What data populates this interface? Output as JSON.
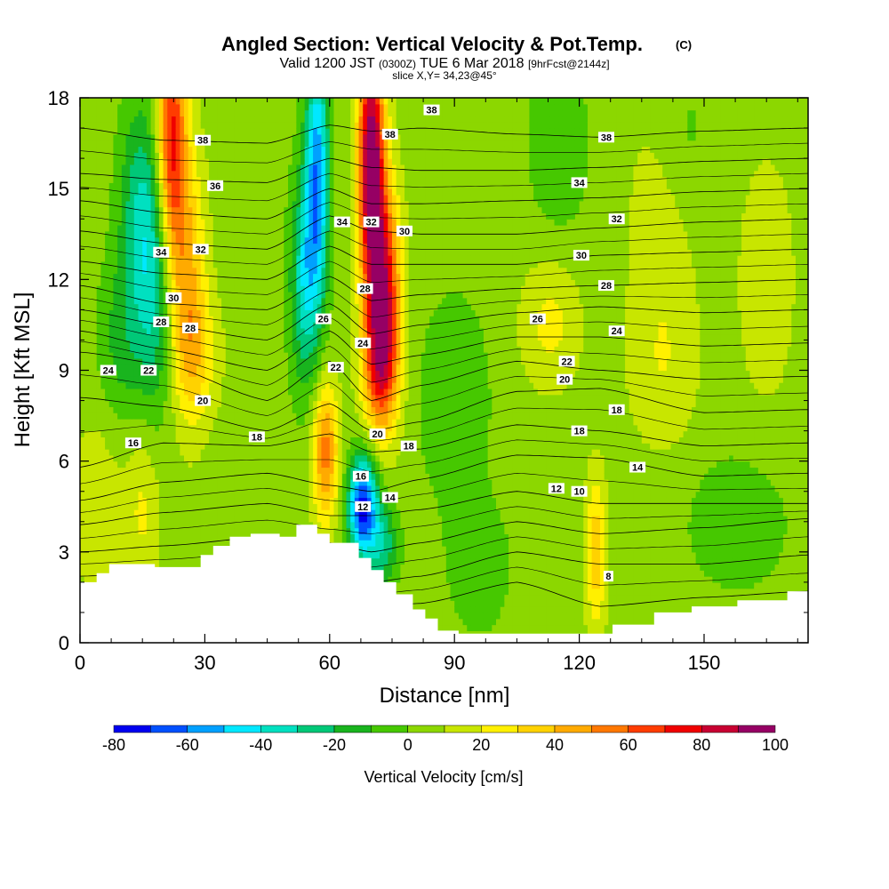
{
  "chart_data": {
    "type": "heatmap",
    "title": "Angled Section: Vertical Velocity & Pot.Temp.",
    "title_mark": "(C)",
    "subtitle_parts": [
      "Valid 1200 JST",
      "(0300Z)",
      "TUE 6 Mar 2018",
      "[9hrFcst@2144z]"
    ],
    "slice_label": "slice X,Y= 34,23@45°",
    "xlabel": "Distance [nm]",
    "ylabel": "Height [Kft MSL]",
    "xlim": [
      0,
      175
    ],
    "ylim": [
      0,
      18
    ],
    "xticks": [
      "0",
      "30",
      "60",
      "90",
      "120",
      "150"
    ],
    "xtick_values": [
      0,
      30,
      60,
      90,
      120,
      150
    ],
    "yticks": [
      "0",
      "3",
      "6",
      "9",
      "12",
      "15",
      "18"
    ],
    "ytick_values": [
      0,
      3,
      6,
      9,
      12,
      15,
      18
    ],
    "colorbar": {
      "title": "Vertical Velocity [cm/s]",
      "labels": [
        "-80",
        "-60",
        "-40",
        "-20",
        "0",
        "20",
        "40",
        "60",
        "80",
        "100"
      ],
      "label_values": [
        -80,
        -60,
        -40,
        -20,
        0,
        20,
        40,
        60,
        80,
        100
      ],
      "bin_edges": [
        -80,
        -70,
        -60,
        -50,
        -40,
        -30,
        -20,
        -10,
        0,
        10,
        20,
        30,
        40,
        50,
        60,
        70,
        80,
        90,
        100
      ],
      "colors": [
        "#0000f0",
        "#0050ff",
        "#00a0ff",
        "#00e8ff",
        "#00e0c0",
        "#00c878",
        "#19b41e",
        "#46c800",
        "#8cd700",
        "#c8e600",
        "#fff000",
        "#ffd200",
        "#ffaa00",
        "#ff7800",
        "#ff3c00",
        "#f00000",
        "#c80032",
        "#960064"
      ]
    },
    "velocity_features": [
      {
        "x": 22,
        "y": 16.5,
        "value": 70,
        "sx": 2.5,
        "sy": 3.0
      },
      {
        "x": 26,
        "y": 12.0,
        "value": 35,
        "sx": 3.0,
        "sy": 3.0
      },
      {
        "x": 28,
        "y": 9.5,
        "value": 20,
        "sx": 4.0,
        "sy": 1.5
      },
      {
        "x": 18,
        "y": 12.0,
        "value": -35,
        "sx": 3.5,
        "sy": 3.0
      },
      {
        "x": 14,
        "y": 14.5,
        "value": -25,
        "sx": 3.5,
        "sy": 2.5
      },
      {
        "x": 10,
        "y": 10.0,
        "value": -18,
        "sx": 4.0,
        "sy": 2.0
      },
      {
        "x": 57,
        "y": 15.5,
        "value": -60,
        "sx": 2.0,
        "sy": 3.0
      },
      {
        "x": 54,
        "y": 12.0,
        "value": -40,
        "sx": 2.5,
        "sy": 2.5
      },
      {
        "x": 70,
        "y": 16.0,
        "value": 95,
        "sx": 2.2,
        "sy": 3.0
      },
      {
        "x": 73,
        "y": 11.5,
        "value": 75,
        "sx": 2.8,
        "sy": 2.5
      },
      {
        "x": 72,
        "y": 9.0,
        "value": 40,
        "sx": 3.0,
        "sy": 1.5
      },
      {
        "x": 59,
        "y": 6.3,
        "value": 50,
        "sx": 2.2,
        "sy": 1.6
      },
      {
        "x": 68,
        "y": 4.5,
        "value": -80,
        "sx": 2.5,
        "sy": 1.2
      },
      {
        "x": 73,
        "y": 3.2,
        "value": -30,
        "sx": 2.5,
        "sy": 1.0
      },
      {
        "x": 113,
        "y": 10.5,
        "value": 18,
        "sx": 5.0,
        "sy": 1.5
      },
      {
        "x": 124,
        "y": 3.0,
        "value": 32,
        "sx": 1.8,
        "sy": 1.8
      },
      {
        "x": 4,
        "y": 4.5,
        "value": 15,
        "sx": 4.0,
        "sy": 2.0
      },
      {
        "x": 15,
        "y": 4.5,
        "value": 17,
        "sx": 3.0,
        "sy": 2.0
      },
      {
        "x": 90,
        "y": 8.0,
        "value": -14,
        "sx": 6.0,
        "sy": 2.5
      },
      {
        "x": 96,
        "y": 2.5,
        "value": -14,
        "sx": 5.0,
        "sy": 1.5
      },
      {
        "x": 158,
        "y": 4.0,
        "value": -15,
        "sx": 8.0,
        "sy": 1.5
      },
      {
        "x": 165,
        "y": 12.0,
        "value": 12,
        "sx": 5.0,
        "sy": 3.0
      },
      {
        "x": 140,
        "y": 14.0,
        "value": 12,
        "sx": 6.0,
        "sy": 3.0
      },
      {
        "x": 140,
        "y": 9.0,
        "value": 12,
        "sx": 6.0,
        "sy": 2.0
      },
      {
        "x": 115,
        "y": 16.5,
        "value": -15,
        "sx": 5.0,
        "sy": 2.0
      },
      {
        "x": 145,
        "y": 16.5,
        "value": -10,
        "sx": 5.0,
        "sy": 2.0
      }
    ],
    "terrain": {
      "x": [
        0,
        4,
        4,
        7,
        7,
        18,
        18,
        29,
        29,
        32,
        32,
        36,
        36,
        41,
        41,
        48,
        48,
        52,
        52,
        57,
        57,
        60,
        60,
        64,
        64,
        67,
        67,
        70,
        70,
        73,
        73,
        76,
        76,
        80,
        80,
        83,
        83,
        86,
        86,
        91,
        91,
        106,
        106,
        116,
        116,
        128,
        128,
        138,
        138,
        147,
        147,
        158,
        158,
        170,
        170,
        175
      ],
      "height": [
        2.0,
        2.0,
        2.3,
        2.3,
        2.6,
        2.6,
        2.5,
        2.5,
        2.9,
        2.9,
        3.2,
        3.2,
        3.5,
        3.5,
        3.6,
        3.6,
        3.5,
        3.5,
        3.9,
        3.9,
        3.6,
        3.6,
        3.3,
        3.3,
        3.3,
        3.3,
        2.8,
        2.8,
        2.4,
        2.4,
        2.0,
        2.0,
        1.6,
        1.6,
        1.1,
        1.1,
        0.8,
        0.8,
        0.4,
        0.4,
        0.3,
        0.3,
        0.3,
        0.3,
        0.3,
        0.3,
        0.6,
        0.6,
        1.0,
        1.0,
        1.2,
        1.2,
        1.4,
        1.4,
        1.7,
        1.7
      ]
    },
    "theta_levels": [
      8,
      10,
      12,
      14,
      16,
      18,
      20,
      22,
      24,
      26,
      28,
      30,
      32,
      34,
      36,
      38
    ],
    "theta_profile": [
      {
        "x": 0,
        "h": [
          1.5,
          2.2,
          3.0,
          3.9,
          4.7,
          5.8,
          8.1,
          9.6,
          10.3,
          11.0,
          11.8,
          12.6,
          13.6,
          14.6,
          15.5,
          17.0
        ]
      },
      {
        "x": 20,
        "h": [
          1.5,
          2.3,
          3.2,
          4.3,
          5.3,
          6.6,
          7.8,
          9.2,
          9.7,
          10.5,
          11.2,
          12.2,
          13.2,
          14.2,
          15.3,
          16.6
        ]
      },
      {
        "x": 45,
        "h": [
          1.6,
          2.5,
          3.5,
          4.6,
          5.6,
          6.5,
          7.0,
          8.0,
          9.0,
          10.0,
          11.0,
          12.0,
          13.0,
          14.0,
          15.2,
          16.5
        ]
      },
      {
        "x": 60,
        "h": [
          1.6,
          2.5,
          3.3,
          4.2,
          5.2,
          6.9,
          7.9,
          9.3,
          10.3,
          11.2,
          12.1,
          13.1,
          14.1,
          15.0,
          16.0,
          17.1
        ]
      },
      {
        "x": 70,
        "h": [
          1.2,
          2.0,
          3.0,
          4.2,
          5.0,
          6.3,
          7.0,
          8.0,
          9.2,
          10.2,
          11.3,
          12.5,
          13.6,
          14.5,
          15.7,
          16.9
        ]
      },
      {
        "x": 82,
        "h": [
          1.3,
          2.2,
          3.3,
          4.4,
          5.4,
          6.4,
          7.3,
          8.5,
          9.5,
          10.5,
          11.5,
          12.5,
          13.5,
          14.5,
          15.6,
          17.0
        ]
      },
      {
        "x": 105,
        "h": [
          2.0,
          3.0,
          4.0,
          5.0,
          6.2,
          7.2,
          8.3,
          9.3,
          10.1,
          10.9,
          11.7,
          12.5,
          13.5,
          14.6,
          15.6,
          16.8
        ]
      },
      {
        "x": 125,
        "h": [
          1.2,
          2.6,
          3.6,
          4.6,
          6.1,
          7.0,
          8.4,
          9.0,
          10.1,
          11.1,
          11.8,
          12.8,
          13.7,
          14.7,
          15.7,
          16.7
        ]
      },
      {
        "x": 150,
        "h": [
          1.5,
          2.6,
          3.8,
          4.6,
          5.5,
          6.5,
          7.6,
          8.7,
          9.8,
          10.9,
          11.9,
          12.9,
          13.9,
          14.9,
          15.9,
          16.9
        ]
      },
      {
        "x": 175,
        "h": [
          1.7,
          2.9,
          4.1,
          4.6,
          5.6,
          6.6,
          7.7,
          8.8,
          9.9,
          11.0,
          12.0,
          13.0,
          14.0,
          15.0,
          16.0,
          17.0
        ]
      }
    ],
    "contour_labels": [
      {
        "text": "38",
        "x": 84.5,
        "y": 17.6
      },
      {
        "text": "38",
        "x": 74.5,
        "y": 16.8
      },
      {
        "text": "38",
        "x": 29.5,
        "y": 16.6
      },
      {
        "text": "38",
        "x": 126.5,
        "y": 16.7
      },
      {
        "text": "36",
        "x": 32.5,
        "y": 15.1
      },
      {
        "text": "34",
        "x": 120.0,
        "y": 15.2
      },
      {
        "text": "34",
        "x": 63.0,
        "y": 13.9
      },
      {
        "text": "32",
        "x": 70.0,
        "y": 13.9
      },
      {
        "text": "30",
        "x": 78.0,
        "y": 13.6
      },
      {
        "text": "32",
        "x": 129.0,
        "y": 14.0
      },
      {
        "text": "34",
        "x": 19.5,
        "y": 12.9
      },
      {
        "text": "32",
        "x": 29.0,
        "y": 13.0
      },
      {
        "text": "30",
        "x": 120.5,
        "y": 12.8
      },
      {
        "text": "28",
        "x": 126.5,
        "y": 11.8
      },
      {
        "text": "28",
        "x": 68.5,
        "y": 11.7
      },
      {
        "text": "30",
        "x": 22.5,
        "y": 11.4
      },
      {
        "text": "26",
        "x": 58.5,
        "y": 10.7
      },
      {
        "text": "26",
        "x": 110.0,
        "y": 10.7
      },
      {
        "text": "28",
        "x": 19.5,
        "y": 10.6
      },
      {
        "text": "28",
        "x": 26.5,
        "y": 10.4
      },
      {
        "text": "24",
        "x": 68.0,
        "y": 9.9
      },
      {
        "text": "24",
        "x": 129.0,
        "y": 10.3
      },
      {
        "text": "22",
        "x": 117.0,
        "y": 9.3
      },
      {
        "text": "24",
        "x": 6.8,
        "y": 9.0
      },
      {
        "text": "22",
        "x": 16.5,
        "y": 9.0
      },
      {
        "text": "22",
        "x": 61.5,
        "y": 9.1
      },
      {
        "text": "20",
        "x": 116.5,
        "y": 8.7
      },
      {
        "text": "20",
        "x": 29.5,
        "y": 8.0
      },
      {
        "text": "18",
        "x": 129.0,
        "y": 7.7
      },
      {
        "text": "18",
        "x": 120.0,
        "y": 7.0
      },
      {
        "text": "16",
        "x": 12.8,
        "y": 6.6
      },
      {
        "text": "18",
        "x": 42.5,
        "y": 6.8
      },
      {
        "text": "20",
        "x": 71.5,
        "y": 6.9
      },
      {
        "text": "18",
        "x": 79.0,
        "y": 6.5
      },
      {
        "text": "14",
        "x": 134.0,
        "y": 5.8
      },
      {
        "text": "16",
        "x": 67.5,
        "y": 5.5
      },
      {
        "text": "12",
        "x": 114.5,
        "y": 5.1
      },
      {
        "text": "10",
        "x": 120.0,
        "y": 5.0
      },
      {
        "text": "14",
        "x": 74.5,
        "y": 4.8
      },
      {
        "text": "12",
        "x": 68.0,
        "y": 4.5
      },
      {
        "text": "8",
        "x": 127.0,
        "y": 2.2
      }
    ],
    "grid": false,
    "legend": "bottom-colorbar"
  }
}
